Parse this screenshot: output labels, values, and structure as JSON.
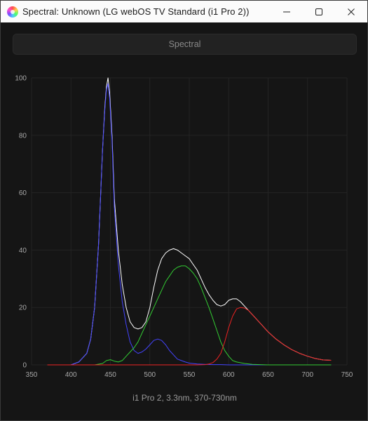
{
  "window": {
    "title": "Spectral: Unknown (LG webOS TV Standard (i1 Pro 2))",
    "icon": "spectral-app-icon"
  },
  "controls": {
    "minimize_icon": "minimize-icon",
    "maximize_icon": "maximize-icon",
    "close_icon": "close-icon"
  },
  "toolbar": {
    "spectral_label": "Spectral"
  },
  "footer": {
    "label": "i1 Pro 2, 3.3nm, 370-730nm"
  },
  "chart_data": {
    "type": "line",
    "xlim": [
      350,
      750
    ],
    "ylim": [
      0,
      100
    ],
    "xticks": [
      350,
      400,
      450,
      500,
      550,
      600,
      650,
      700,
      750
    ],
    "yticks": [
      0,
      20,
      40,
      60,
      80,
      100
    ],
    "grid": true,
    "background": "#151515",
    "series": [
      {
        "color": "#ffffff",
        "x": [
          370,
          400,
          410,
          420,
          425,
          430,
          435,
          440,
          443,
          445,
          447,
          449,
          452,
          455,
          460,
          465,
          470,
          475,
          480,
          485,
          490,
          495,
          500,
          505,
          510,
          515,
          520,
          525,
          530,
          535,
          540,
          545,
          550,
          555,
          560,
          565,
          570,
          575,
          580,
          585,
          590,
          595,
          600,
          605,
          610,
          615,
          620,
          625,
          630,
          640,
          650,
          660,
          670,
          680,
          690,
          700,
          710,
          720,
          730
        ],
        "y": [
          0,
          0,
          1,
          4,
          9,
          20,
          42,
          75,
          90,
          97,
          100,
          95,
          80,
          58,
          40,
          28,
          20,
          15,
          13,
          12.5,
          13,
          15,
          20,
          27,
          33,
          37,
          39,
          40,
          40.5,
          40,
          39,
          38,
          37,
          35,
          33,
          30,
          27,
          24.5,
          22.5,
          21,
          20.5,
          21,
          22.5,
          23,
          23,
          22,
          20.5,
          19,
          17.5,
          14.5,
          11.5,
          9,
          7,
          5.3,
          4,
          3,
          2.2,
          1.7,
          1.6
        ]
      },
      {
        "color": "#4444ff",
        "x": [
          370,
          400,
          410,
          420,
          425,
          430,
          435,
          440,
          443,
          445,
          447,
          449,
          452,
          455,
          460,
          465,
          470,
          475,
          480,
          485,
          490,
          495,
          500,
          505,
          510,
          515,
          520,
          525,
          530,
          535,
          540,
          545,
          550,
          560,
          570,
          580,
          590,
          600,
          620,
          650,
          700,
          730
        ],
        "y": [
          0,
          0,
          1,
          4,
          9,
          20,
          42,
          75,
          89,
          96,
          98,
          93,
          78,
          55,
          35,
          22,
          14,
          8,
          5,
          4,
          4.5,
          5.5,
          7,
          8.5,
          9,
          8.5,
          7,
          5,
          3.5,
          2,
          1.5,
          1,
          0.6,
          0.3,
          0.2,
          0.1,
          0.1,
          0,
          0,
          0,
          0,
          0
        ]
      },
      {
        "color": "#33cc33",
        "x": [
          370,
          430,
          440,
          445,
          450,
          455,
          460,
          465,
          470,
          475,
          480,
          485,
          490,
          495,
          500,
          505,
          510,
          515,
          520,
          525,
          530,
          535,
          540,
          545,
          550,
          555,
          560,
          565,
          570,
          575,
          580,
          585,
          590,
          595,
          600,
          605,
          610,
          620,
          630,
          650,
          700,
          730
        ],
        "y": [
          0,
          0,
          0.5,
          1.5,
          1.8,
          1.3,
          1,
          1.5,
          3,
          4.5,
          6,
          8,
          11,
          14,
          17,
          20,
          23,
          26,
          29,
          31,
          33,
          34,
          34.5,
          34.5,
          33.5,
          32,
          30,
          27,
          23.5,
          20,
          16,
          12,
          8,
          5,
          3,
          1.5,
          1,
          0.5,
          0.2,
          0,
          0,
          0
        ]
      },
      {
        "color": "#ee2222",
        "x": [
          370,
          560,
          570,
          575,
          580,
          585,
          590,
          595,
          600,
          605,
          610,
          615,
          620,
          625,
          630,
          640,
          650,
          660,
          670,
          680,
          690,
          700,
          710,
          720,
          730
        ],
        "y": [
          0,
          0,
          0.1,
          0.3,
          0.8,
          2,
          4,
          8,
          13,
          17,
          19.5,
          20,
          19.8,
          19,
          17.5,
          14.5,
          11.5,
          9,
          7,
          5.3,
          4,
          3,
          2.2,
          1.7,
          1.6
        ]
      }
    ]
  }
}
